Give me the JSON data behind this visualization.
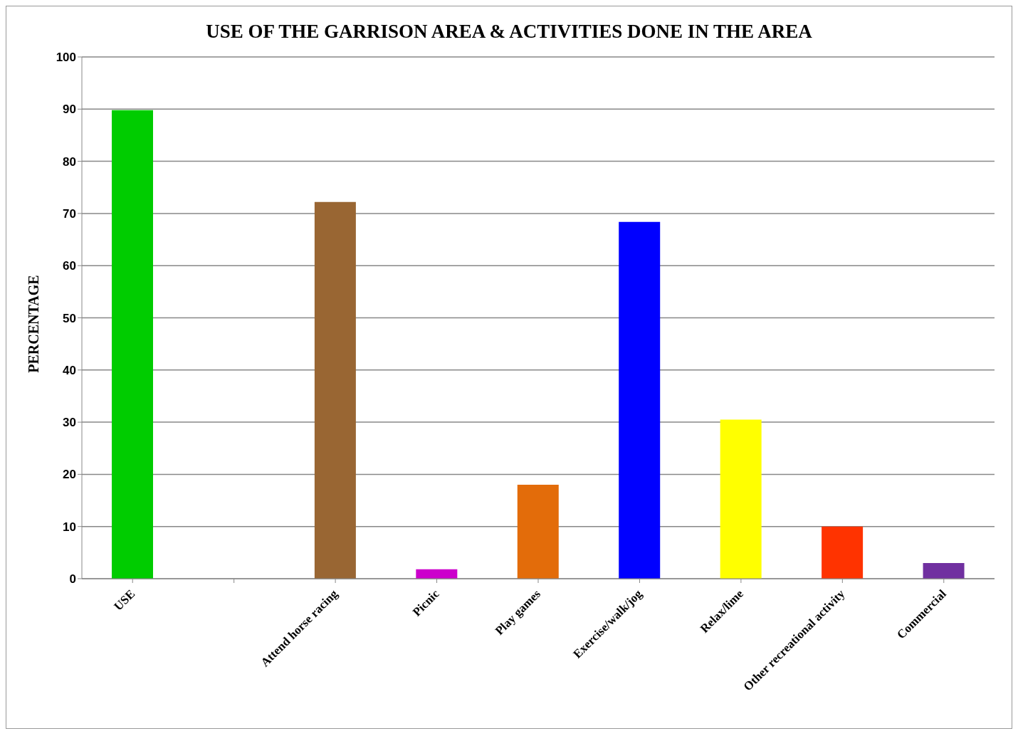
{
  "chart_data": {
    "type": "bar",
    "title": "USE OF THE GARRISON AREA & ACTIVITIES DONE IN THE AREA",
    "ylabel": "PERCENTAGE",
    "categories": [
      "USE",
      null,
      "Attend horse racing",
      "Picnic",
      "Play games",
      "Exercise/walk/jog",
      "Relax/lime",
      "Other recreational activity",
      "Commercial"
    ],
    "values": [
      89.8,
      null,
      72.2,
      1.8,
      18,
      68.4,
      30.5,
      10,
      3
    ],
    "colors": [
      "#00cc00",
      "#ffffff",
      "#996633",
      "#cc00cc",
      "#e36c0a",
      "#0000ff",
      "#ffff00",
      "#ff3300",
      "#7030a0"
    ],
    "ylim": [
      0,
      100
    ],
    "yticks": [
      0,
      10,
      20,
      30,
      40,
      50,
      60,
      70,
      80,
      90,
      100
    ],
    "grid": "y"
  }
}
